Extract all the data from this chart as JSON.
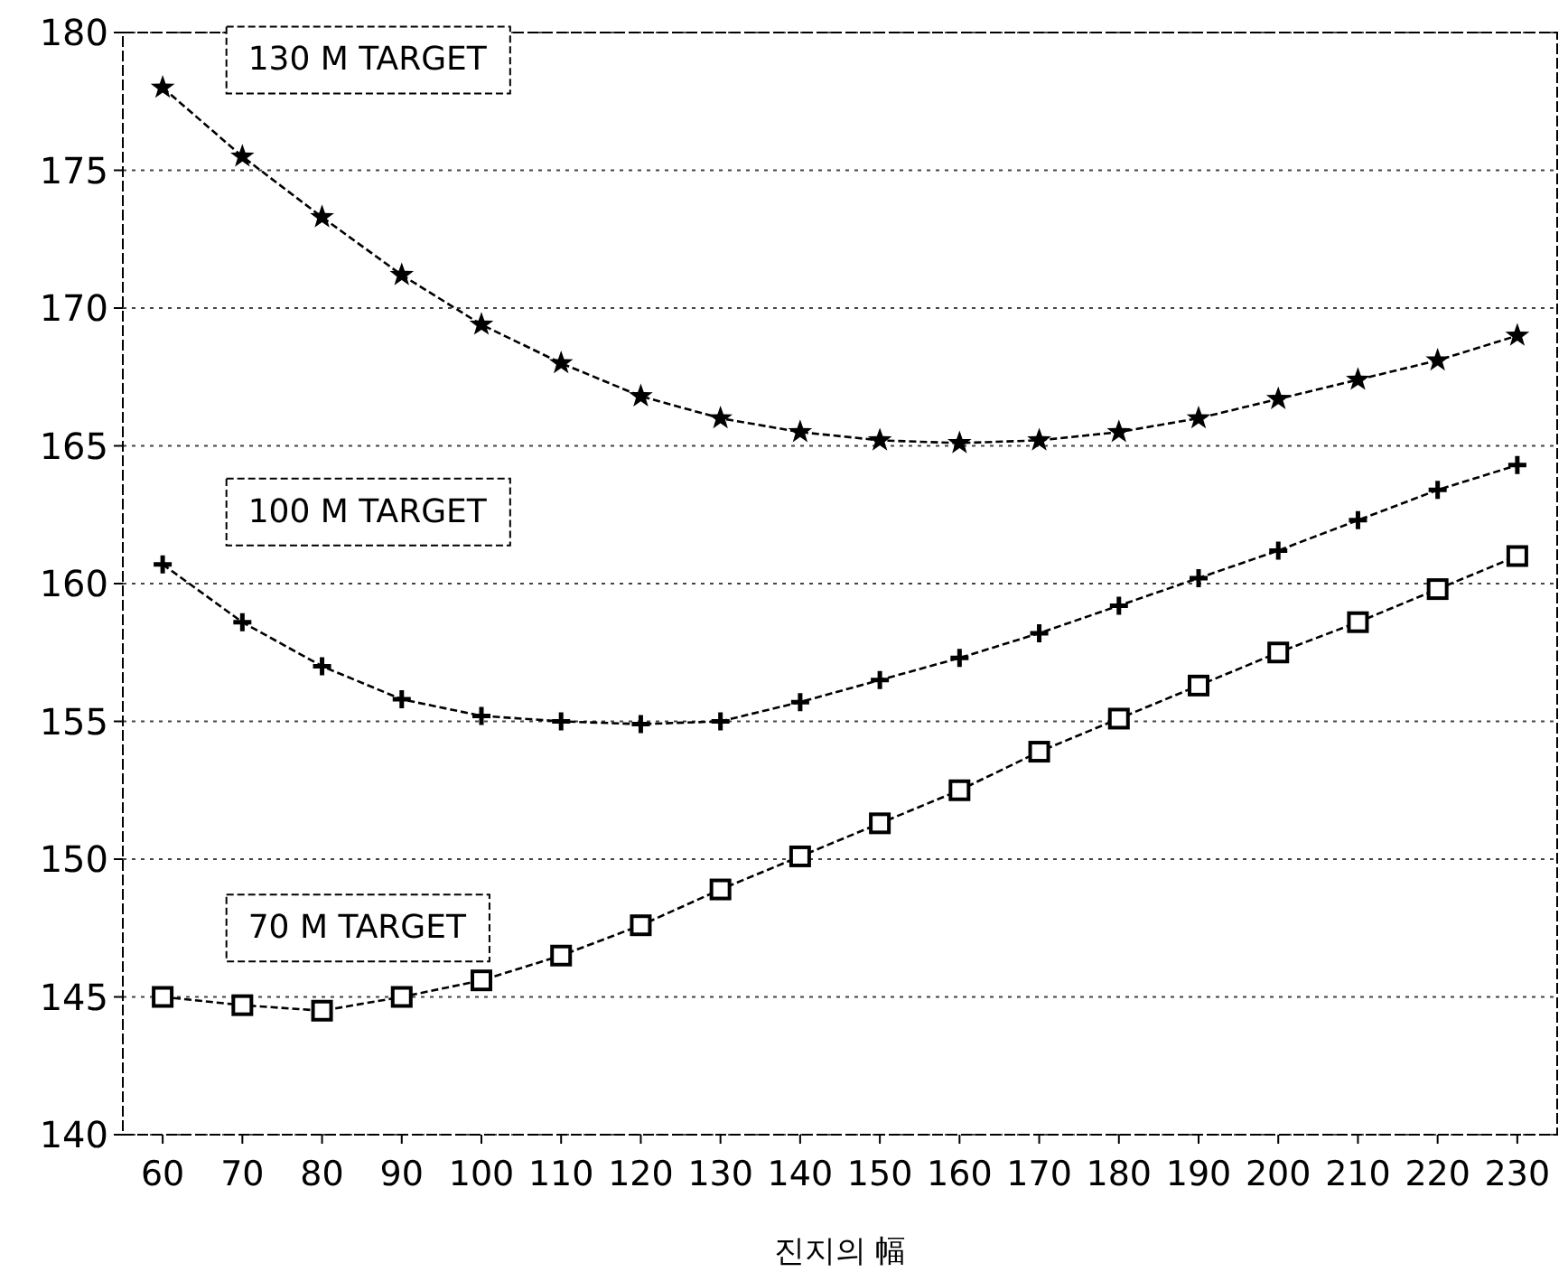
{
  "chart_data": {
    "type": "line",
    "xlabel": "진지의 幅",
    "categories": [
      "60",
      "70",
      "80",
      "90",
      "100",
      "110",
      "120",
      "130",
      "140",
      "150",
      "160",
      "170",
      "180",
      "190",
      "200",
      "210",
      "220",
      "230"
    ],
    "series": [
      {
        "name": "130 M TARGET",
        "color": "#000000",
        "marker": "star",
        "values": [
          178.0,
          175.5,
          173.3,
          171.2,
          169.4,
          168.0,
          166.8,
          166.0,
          165.5,
          165.2,
          165.1,
          165.2,
          165.5,
          166.0,
          166.7,
          167.4,
          168.1,
          169.0
        ]
      },
      {
        "name": "100 M TARGET",
        "color": "#000000",
        "marker": "cross",
        "values": [
          160.7,
          158.6,
          157.0,
          155.8,
          155.2,
          155.0,
          154.9,
          155.0,
          155.7,
          156.5,
          157.3,
          158.2,
          159.2,
          160.2,
          161.2,
          162.3,
          163.4,
          164.3
        ]
      },
      {
        "name": "70 M TARGET",
        "color": "#000000",
        "marker": "square",
        "values": [
          145.0,
          144.7,
          144.5,
          145.0,
          145.6,
          146.5,
          147.6,
          148.9,
          150.1,
          151.3,
          152.5,
          153.9,
          155.1,
          156.3,
          157.5,
          158.6,
          159.8,
          161.0
        ]
      }
    ],
    "ylim": [
      140,
      180
    ],
    "yticks": [
      140,
      145,
      150,
      155,
      160,
      165,
      170,
      175,
      180
    ],
    "grid": "y",
    "line_style": "dashed"
  }
}
